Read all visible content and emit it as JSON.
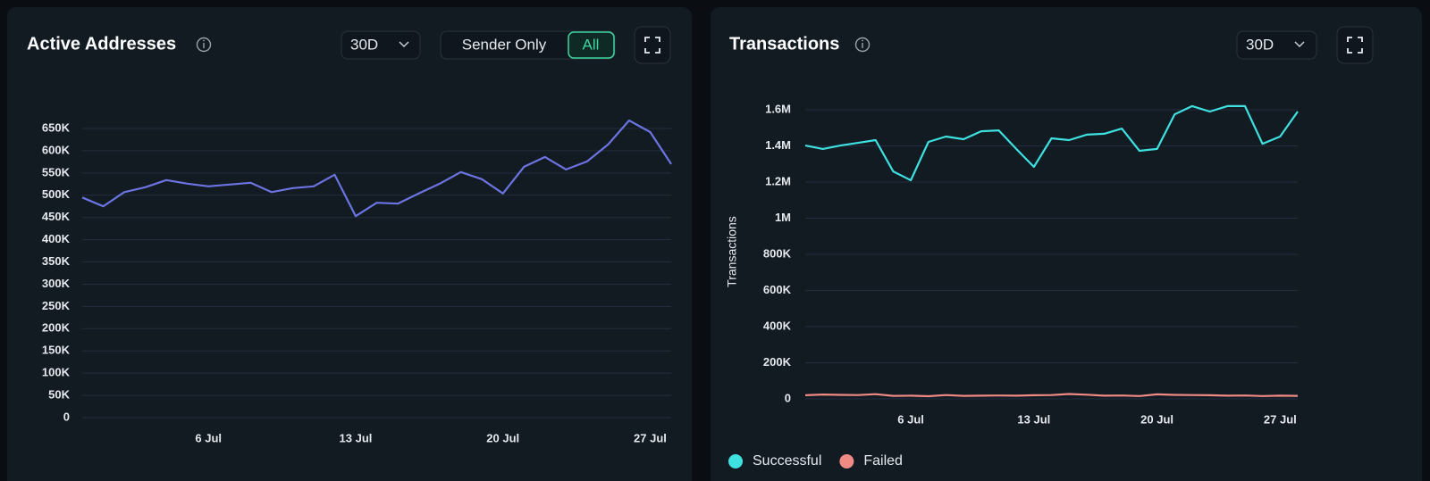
{
  "chart_data": [
    {
      "type": "line",
      "title": "Active Addresses",
      "range": "30D",
      "toggle": [
        "Sender Only",
        "All"
      ],
      "toggle_selected": 1,
      "categories": [
        null,
        null,
        null,
        null,
        null,
        null,
        "6 Jul",
        null,
        null,
        null,
        null,
        null,
        null,
        "13 Jul",
        null,
        null,
        null,
        null,
        null,
        null,
        "20 Jul",
        null,
        null,
        null,
        null,
        null,
        null,
        "27 Jul",
        null
      ],
      "values": [
        495000,
        475000,
        507000,
        518000,
        534000,
        526000,
        520000,
        524000,
        528000,
        507000,
        516000,
        520000,
        546000,
        453000,
        483000,
        481000,
        504000,
        526000,
        552000,
        536000,
        504000,
        564000,
        586000,
        558000,
        576000,
        614000,
        668000,
        642000,
        570000
      ],
      "color": "#6b74e0",
      "ylim": [
        0,
        650000
      ],
      "yticks": [
        0,
        {
          "value": 50000,
          "label": "50K"
        },
        {
          "value": 100000,
          "label": "100K"
        },
        {
          "value": 150000,
          "label": "150K"
        },
        {
          "value": 200000,
          "label": "200K"
        },
        {
          "value": 250000,
          "label": "250K"
        },
        {
          "value": 300000,
          "label": "300K"
        },
        {
          "value": 350000,
          "label": "350K"
        },
        {
          "value": 400000,
          "label": "400K"
        },
        {
          "value": 450000,
          "label": "450K"
        },
        {
          "value": 500000,
          "label": "500K"
        },
        {
          "value": 550000,
          "label": "550K"
        },
        {
          "value": 600000,
          "label": "600K"
        },
        {
          "value": 650000,
          "label": "650K"
        }
      ],
      "grid": true
    },
    {
      "type": "line",
      "title": "Transactions",
      "range": "30D",
      "y_label": "Transactions",
      "categories": [
        null,
        null,
        null,
        null,
        null,
        null,
        "6 Jul",
        null,
        null,
        null,
        null,
        null,
        null,
        "13 Jul",
        null,
        null,
        null,
        null,
        null,
        null,
        "20 Jul",
        null,
        null,
        null,
        null,
        null,
        null,
        "27 Jul",
        null
      ],
      "series": [
        {
          "name": "Successful",
          "color": "#3ee0e0",
          "values": [
            1402000,
            1383000,
            1402000,
            1417000,
            1432000,
            1259000,
            1210000,
            1422000,
            1452000,
            1437000,
            1481000,
            1486000,
            1383000,
            1284000,
            1442000,
            1432000,
            1462000,
            1467000,
            1496000,
            1373000,
            1383000,
            1575000,
            1620000,
            1590000,
            1620000,
            1620000,
            1412000,
            1452000,
            1590000
          ]
        },
        {
          "name": "Failed",
          "color": "#f08a84",
          "values": [
            20000,
            24000,
            22000,
            21000,
            26000,
            17000,
            18000,
            15000,
            21000,
            17000,
            18000,
            19000,
            18000,
            20000,
            21000,
            27000,
            23000,
            18000,
            19000,
            16000,
            25000,
            22000,
            21000,
            20000,
            18000,
            19000,
            16000,
            18000,
            17000
          ]
        }
      ],
      "ylim": [
        0,
        1600000
      ],
      "yticks": [
        0,
        {
          "value": 200000,
          "label": "200K"
        },
        {
          "value": 400000,
          "label": "400K"
        },
        {
          "value": 600000,
          "label": "600K"
        },
        {
          "value": 800000,
          "label": "800K"
        },
        {
          "value": 1000000,
          "label": "1M"
        },
        {
          "value": 1200000,
          "label": "1.2M"
        },
        {
          "value": 1400000,
          "label": "1.4M"
        },
        {
          "value": 1600000,
          "label": "1.6M"
        }
      ],
      "grid": true
    }
  ]
}
